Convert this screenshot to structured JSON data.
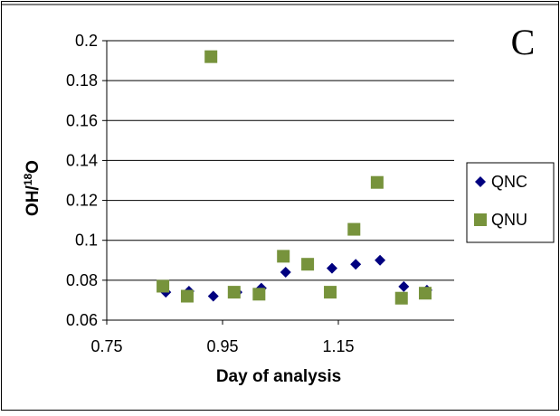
{
  "chart_data": {
    "type": "scatter",
    "panel_label": "C",
    "x_label": "Day of analysis",
    "y_label": {
      "base": "OH/",
      "sup": "18",
      "tail": "O"
    },
    "xlim": [
      0.75,
      1.35
    ],
    "xticks": [
      0.75,
      0.95,
      1.15
    ],
    "ylim": [
      0.06,
      0.2
    ],
    "yticks": [
      0.06,
      0.08,
      0.1,
      0.12,
      0.14,
      0.16,
      0.18,
      0.2
    ],
    "grid": true,
    "legend": "right",
    "series": [
      {
        "name": "QNC",
        "color": "#000080",
        "marker": "diamond",
        "x": [
          0.852,
          0.892,
          0.934,
          0.975,
          1.017,
          1.059,
          1.139,
          1.18,
          1.222,
          1.263,
          1.303
        ],
        "values": [
          0.074,
          0.0745,
          0.072,
          0.074,
          0.076,
          0.084,
          0.086,
          0.088,
          0.09,
          0.0768,
          0.075
        ]
      },
      {
        "name": "QNU",
        "color": "#77933c",
        "marker": "square",
        "x": [
          0.847,
          0.889,
          0.93,
          0.97,
          1.013,
          1.055,
          1.097,
          1.136,
          1.177,
          1.217,
          1.259,
          1.3
        ],
        "values": [
          0.077,
          0.072,
          0.192,
          0.074,
          0.073,
          0.092,
          0.088,
          0.074,
          0.1055,
          0.129,
          0.071,
          0.0735
        ]
      }
    ]
  }
}
